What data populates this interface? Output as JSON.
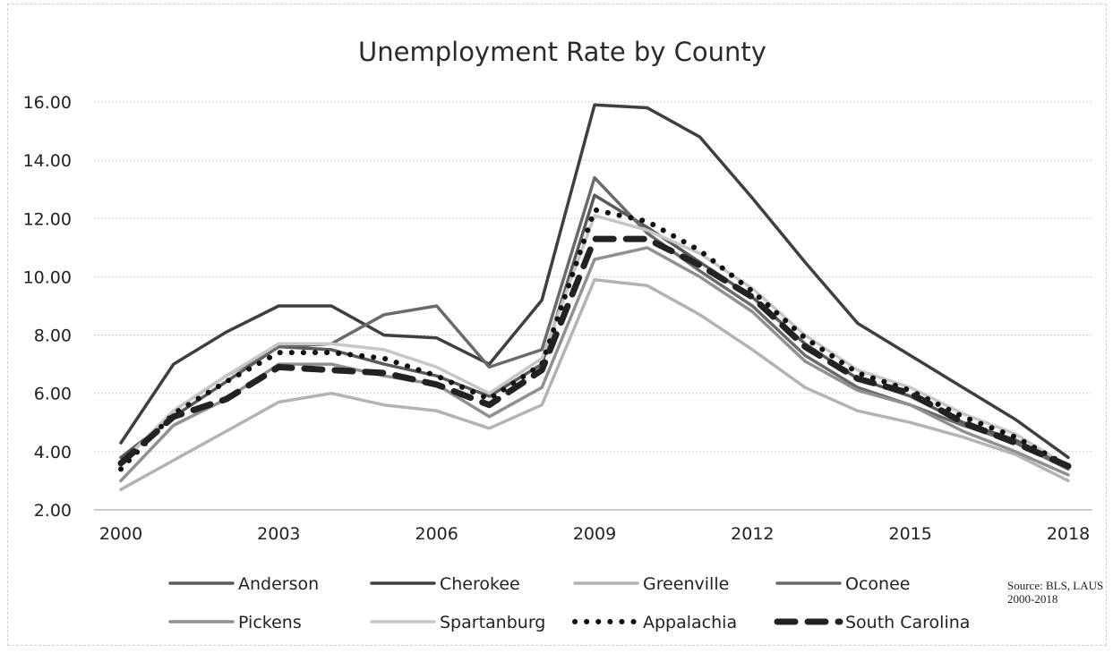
{
  "chart_data": {
    "type": "line",
    "title": "Unemployment Rate by County",
    "xlabel": "",
    "ylabel": "",
    "x": [
      2000,
      2001,
      2002,
      2003,
      2004,
      2005,
      2006,
      2007,
      2008,
      2009,
      2010,
      2011,
      2012,
      2013,
      2014,
      2015,
      2016,
      2017,
      2018
    ],
    "x_tick_labels": [
      "2000",
      "2003",
      "2006",
      "2009",
      "2012",
      "2015",
      "2018"
    ],
    "y_tick_labels": [
      "2.00",
      "4.00",
      "6.00",
      "8.00",
      "10.00",
      "12.00",
      "14.00",
      "16.00"
    ],
    "ylim": [
      2,
      16
    ],
    "grid": true,
    "legend_position": "bottom",
    "series": [
      {
        "name": "Anderson",
        "color": "#5a5a5a",
        "style": "solid",
        "values": [
          3.8,
          5.2,
          6.4,
          7.6,
          7.5,
          7.0,
          6.6,
          5.9,
          7.0,
          12.8,
          11.7,
          10.5,
          9.3,
          7.7,
          6.5,
          5.9,
          5.0,
          4.4,
          3.5
        ]
      },
      {
        "name": "Cherokee",
        "color": "#3f3f3f",
        "style": "solid",
        "values": [
          4.3,
          7.0,
          8.1,
          9.0,
          9.0,
          8.0,
          7.9,
          7.0,
          9.2,
          15.9,
          15.8,
          14.8,
          12.7,
          10.5,
          8.4,
          7.3,
          6.2,
          5.1,
          3.8
        ]
      },
      {
        "name": "Greenville",
        "color": "#b3b3b3",
        "style": "solid",
        "values": [
          2.7,
          3.7,
          4.7,
          5.7,
          6.0,
          5.6,
          5.4,
          4.8,
          5.6,
          9.9,
          9.7,
          8.7,
          7.5,
          6.2,
          5.4,
          5.0,
          4.5,
          3.9,
          3.0
        ]
      },
      {
        "name": "Oconee",
        "color": "#6a6a6a",
        "style": "solid",
        "values": [
          3.6,
          5.4,
          6.6,
          7.6,
          7.7,
          8.7,
          9.0,
          6.9,
          7.5,
          13.4,
          11.5,
          10.2,
          9.0,
          7.3,
          6.2,
          5.6,
          4.9,
          4.3,
          3.4
        ]
      },
      {
        "name": "Pickens",
        "color": "#909090",
        "style": "solid",
        "values": [
          3.0,
          4.9,
          5.8,
          7.0,
          7.0,
          6.6,
          6.3,
          5.2,
          6.2,
          10.6,
          11.0,
          10.0,
          8.8,
          7.1,
          6.1,
          5.6,
          4.7,
          4.0,
          3.2
        ]
      },
      {
        "name": "Spartanburg",
        "color": "#c6c6c6",
        "style": "solid",
        "values": [
          3.6,
          5.4,
          6.6,
          7.7,
          7.7,
          7.5,
          6.9,
          6.0,
          7.2,
          12.1,
          11.6,
          10.8,
          9.6,
          8.0,
          6.8,
          6.2,
          5.3,
          4.6,
          3.5
        ]
      },
      {
        "name": "Appalachia",
        "color": "#111111",
        "style": "dotted",
        "values": [
          3.4,
          5.3,
          6.4,
          7.4,
          7.4,
          7.2,
          6.6,
          5.8,
          7.0,
          12.3,
          11.9,
          10.9,
          9.5,
          7.9,
          6.7,
          6.1,
          5.2,
          4.5,
          3.5
        ]
      },
      {
        "name": "South Carolina",
        "color": "#222222",
        "style": "dashed",
        "values": [
          3.6,
          5.2,
          5.8,
          6.9,
          6.8,
          6.7,
          6.3,
          5.6,
          6.8,
          11.3,
          11.3,
          10.4,
          9.3,
          7.6,
          6.5,
          6.0,
          5.0,
          4.3,
          3.5
        ]
      }
    ],
    "source_note": "Source: BLS, LAUS 2000-2018"
  }
}
